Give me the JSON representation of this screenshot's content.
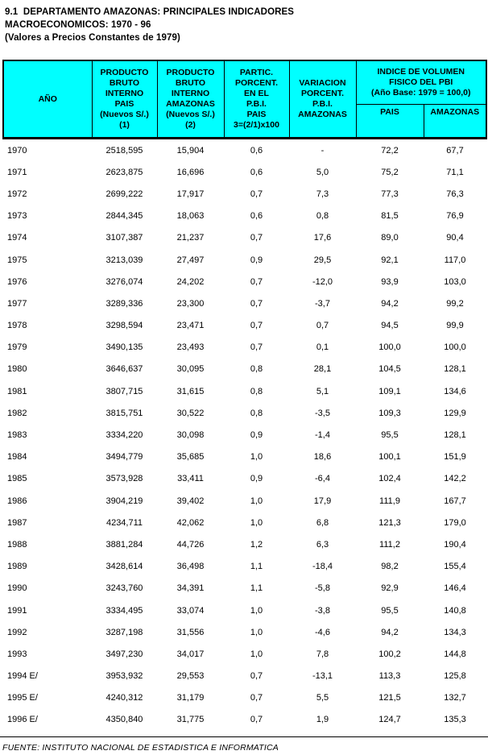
{
  "title": {
    "line1": "9.1  DEPARTAMENTO AMAZONAS: PRINCIPALES INDICADORES",
    "line2": "MACROECONOMICOS: 1970 - 96",
    "line3": "(Valores a Precios Constantes de 1979)"
  },
  "table": {
    "header": {
      "ano": "AÑO",
      "pbi_pais": "PRODUCTO\nBRUTO\nINTERNO\nPAIS\n(Nuevos S/.)\n(1)",
      "pbi_amazonas": "PRODUCTO\nBRUTO\nINTERNO\nAMAZONAS\n(Nuevos S/.)\n(2)",
      "partic": "PARTIC.\nPORCENT.\nEN EL\nP.B.I.\nPAIS\n3=(2/1)x100",
      "variacion": "VARIACION\nPORCENT.\nP.B.I.\nAMAZONAS",
      "indice_group": "INDICE DE VOLUMEN\nFISICO DEL PBI\n(Año Base: 1979 = 100,0)",
      "indice_pais": "PAIS",
      "indice_amazonas": "AMAZONAS"
    },
    "rows": [
      [
        "1970",
        "2518,595",
        "15,904",
        "0,6",
        "-",
        "72,2",
        "67,7"
      ],
      [
        "1971",
        "2623,875",
        "16,696",
        "0,6",
        "5,0",
        "75,2",
        "71,1"
      ],
      [
        "1972",
        "2699,222",
        "17,917",
        "0,7",
        "7,3",
        "77,3",
        "76,3"
      ],
      [
        "1973",
        "2844,345",
        "18,063",
        "0,6",
        "0,8",
        "81,5",
        "76,9"
      ],
      [
        "1974",
        "3107,387",
        "21,237",
        "0,7",
        "17,6",
        "89,0",
        "90,4"
      ],
      [
        "1975",
        "3213,039",
        "27,497",
        "0,9",
        "29,5",
        "92,1",
        "117,0"
      ],
      [
        "1976",
        "3276,074",
        "24,202",
        "0,7",
        "-12,0",
        "93,9",
        "103,0"
      ],
      [
        "1977",
        "3289,336",
        "23,300",
        "0,7",
        "-3,7",
        "94,2",
        "99,2"
      ],
      [
        "1978",
        "3298,594",
        "23,471",
        "0,7",
        "0,7",
        "94,5",
        "99,9"
      ],
      [
        "1979",
        "3490,135",
        "23,493",
        "0,7",
        "0,1",
        "100,0",
        "100,0"
      ],
      [
        "1980",
        "3646,637",
        "30,095",
        "0,8",
        "28,1",
        "104,5",
        "128,1"
      ],
      [
        "1981",
        "3807,715",
        "31,615",
        "0,8",
        "5,1",
        "109,1",
        "134,6"
      ],
      [
        "1982",
        "3815,751",
        "30,522",
        "0,8",
        "-3,5",
        "109,3",
        "129,9"
      ],
      [
        "1983",
        "3334,220",
        "30,098",
        "0,9",
        "-1,4",
        "95,5",
        "128,1"
      ],
      [
        "1984",
        "3494,779",
        "35,685",
        "1,0",
        "18,6",
        "100,1",
        "151,9"
      ],
      [
        "1985",
        "3573,928",
        "33,411",
        "0,9",
        "-6,4",
        "102,4",
        "142,2"
      ],
      [
        "1986",
        "3904,219",
        "39,402",
        "1,0",
        "17,9",
        "111,9",
        "167,7"
      ],
      [
        "1987",
        "4234,711",
        "42,062",
        "1,0",
        "6,8",
        "121,3",
        "179,0"
      ],
      [
        "1988",
        "3881,284",
        "44,726",
        "1,2",
        "6,3",
        "111,2",
        "190,4"
      ],
      [
        "1989",
        "3428,614",
        "36,498",
        "1,1",
        "-18,4",
        "98,2",
        "155,4"
      ],
      [
        "1990",
        "3243,760",
        "34,391",
        "1,1",
        "-5,8",
        "92,9",
        "146,4"
      ],
      [
        "1991",
        "3334,495",
        "33,074",
        "1,0",
        "-3,8",
        "95,5",
        "140,8"
      ],
      [
        "1992",
        "3287,198",
        "31,556",
        "1,0",
        "-4,6",
        "94,2",
        "134,3"
      ],
      [
        "1993",
        "3497,230",
        "34,017",
        "1,0",
        "7,8",
        "100,2",
        "144,8"
      ],
      [
        "1994 E/",
        "3953,932",
        "29,553",
        "0,7",
        "-13,1",
        "113,3",
        "125,8"
      ],
      [
        "1995 E/",
        "4240,312",
        "31,179",
        "0,7",
        "5,5",
        "121,5",
        "132,7"
      ],
      [
        "1996 E/",
        "4350,840",
        "31,775",
        "0,7",
        "1,9",
        "124,7",
        "135,3"
      ]
    ]
  },
  "footer": {
    "source": "FUENTE: INSTITUTO NACIONAL DE ESTADISTICA E INFORMATICA"
  },
  "colors": {
    "header_bg": "#00FFFF",
    "border": "#000000",
    "text": "#000000",
    "background": "#FFFFFF"
  }
}
